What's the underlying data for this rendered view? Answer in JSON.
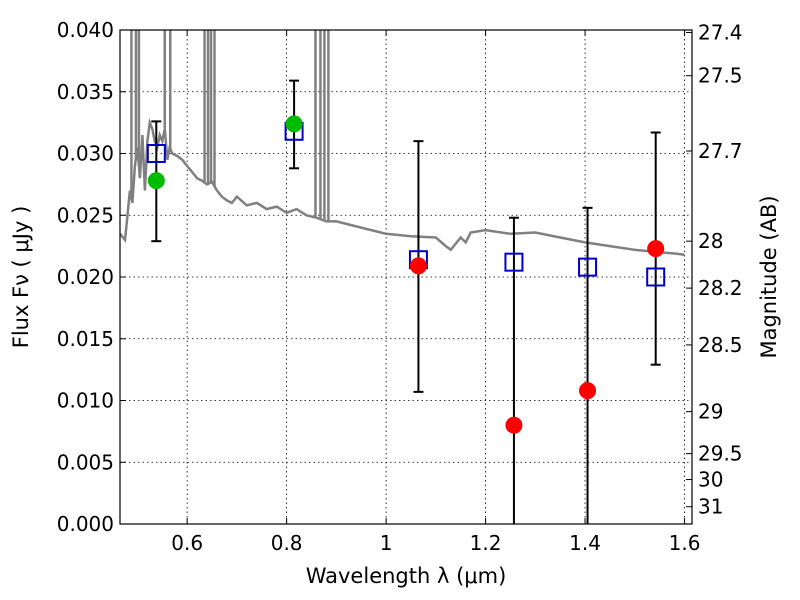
{
  "chart_data": {
    "type": "scatter",
    "title": "",
    "xlabel": "Wavelength  λ (μm)",
    "ylabel": "Flux  Fν  ( μJy )",
    "y2label": "Magnitude (AB)",
    "xlim": [
      0.465,
      1.615
    ],
    "ylim": [
      0.0,
      0.04
    ],
    "grid": true,
    "xticks": [
      0.6,
      0.8,
      1.0,
      1.2,
      1.4,
      1.6
    ],
    "xtick_labels": [
      "0.6",
      "0.8",
      "1",
      "1.2",
      "1.4",
      "1.6"
    ],
    "yticks": [
      0.0,
      0.005,
      0.01,
      0.015,
      0.02,
      0.025,
      0.03,
      0.035,
      0.04
    ],
    "ytick_labels": [
      "0.000",
      "0.005",
      "0.010",
      "0.015",
      "0.020",
      "0.025",
      "0.030",
      "0.035",
      "0.040"
    ],
    "y2ticks": [
      {
        "label": "27.4",
        "flux": 0.0398
      },
      {
        "label": "27.5",
        "flux": 0.0363
      },
      {
        "label": "27.7",
        "flux": 0.0302
      },
      {
        "label": "28",
        "flux": 0.0229
      },
      {
        "label": "28.2",
        "flux": 0.0191
      },
      {
        "label": "28.5",
        "flux": 0.0145
      },
      {
        "label": "29",
        "flux": 0.0091
      },
      {
        "label": "29.5",
        "flux": 0.0057
      },
      {
        "label": "30",
        "flux": 0.0036
      },
      {
        "label": "31",
        "flux": 0.0014
      }
    ],
    "model_color": "#808080",
    "model_x": [
      0.465,
      0.475,
      0.48,
      0.485,
      0.49,
      0.495,
      0.5,
      0.505,
      0.51,
      0.515,
      0.52,
      0.525,
      0.53,
      0.535,
      0.54,
      0.545,
      0.55,
      0.555,
      0.56,
      0.565,
      0.57,
      0.58,
      0.59,
      0.6,
      0.61,
      0.62,
      0.63,
      0.64,
      0.65,
      0.66,
      0.67,
      0.68,
      0.69,
      0.7,
      0.72,
      0.74,
      0.76,
      0.78,
      0.8,
      0.82,
      0.84,
      0.86,
      0.88,
      0.9,
      0.95,
      1.0,
      1.05,
      1.1,
      1.12,
      1.13,
      1.15,
      1.16,
      1.17,
      1.2,
      1.25,
      1.3,
      1.35,
      1.4,
      1.45,
      1.5,
      1.55,
      1.58,
      1.6
    ],
    "model_y": [
      0.0235,
      0.023,
      0.025,
      0.027,
      0.026,
      0.029,
      0.0305,
      0.028,
      0.0315,
      0.027,
      0.031,
      0.0325,
      0.032,
      0.031,
      0.0305,
      0.0315,
      0.031,
      0.032,
      0.0295,
      0.0305,
      0.03,
      0.0298,
      0.0295,
      0.029,
      0.0285,
      0.028,
      0.0278,
      0.0275,
      0.0277,
      0.027,
      0.0265,
      0.0262,
      0.026,
      0.0265,
      0.0258,
      0.026,
      0.0255,
      0.0257,
      0.0252,
      0.0255,
      0.025,
      0.0248,
      0.0245,
      0.0245,
      0.024,
      0.0235,
      0.0233,
      0.0232,
      0.0225,
      0.0222,
      0.0232,
      0.0228,
      0.0236,
      0.0238,
      0.0235,
      0.0236,
      0.0232,
      0.0228,
      0.0225,
      0.0222,
      0.022,
      0.0219,
      0.0218
    ],
    "model_spikes": [
      {
        "x": 0.488,
        "y": 0.045
      },
      {
        "x": 0.497,
        "y": 0.045
      },
      {
        "x": 0.503,
        "y": 0.045
      },
      {
        "x": 0.555,
        "y": 0.045
      },
      {
        "x": 0.566,
        "y": 0.045
      },
      {
        "x": 0.635,
        "y": 0.045
      },
      {
        "x": 0.642,
        "y": 0.045
      },
      {
        "x": 0.648,
        "y": 0.045
      },
      {
        "x": 0.655,
        "y": 0.045
      },
      {
        "x": 0.858,
        "y": 0.045
      },
      {
        "x": 0.868,
        "y": 0.045
      },
      {
        "x": 0.876,
        "y": 0.045
      },
      {
        "x": 0.884,
        "y": 0.045
      }
    ],
    "series": [
      {
        "marker": "open-square",
        "color": "#0000cc",
        "points": [
          {
            "x": 0.538,
            "y": 0.03
          },
          {
            "x": 0.815,
            "y": 0.0318
          },
          {
            "x": 1.065,
            "y": 0.0214
          },
          {
            "x": 1.257,
            "y": 0.0212
          },
          {
            "x": 1.405,
            "y": 0.0208
          },
          {
            "x": 1.542,
            "y": 0.02
          }
        ]
      },
      {
        "marker": "filled-circle",
        "color": "#00bb00",
        "points": [
          {
            "x": 0.538,
            "y": 0.0278
          },
          {
            "x": 0.815,
            "y": 0.0324
          }
        ]
      },
      {
        "marker": "filled-circle",
        "color": "#ff0000",
        "points": [
          {
            "x": 1.065,
            "y": 0.0209
          },
          {
            "x": 1.257,
            "y": 0.008
          },
          {
            "x": 1.405,
            "y": 0.0108
          },
          {
            "x": 1.542,
            "y": 0.0223
          }
        ]
      }
    ],
    "error_bars": [
      {
        "x": 0.538,
        "low": 0.0229,
        "high": 0.0326
      },
      {
        "x": 0.815,
        "low": 0.0288,
        "high": 0.0359
      },
      {
        "x": 1.065,
        "low": 0.0107,
        "high": 0.031
      },
      {
        "x": 1.257,
        "low": 0.0,
        "high": 0.0248
      },
      {
        "x": 1.405,
        "low": 0.0,
        "high": 0.0256
      },
      {
        "x": 1.542,
        "low": 0.0129,
        "high": 0.0317
      }
    ]
  }
}
